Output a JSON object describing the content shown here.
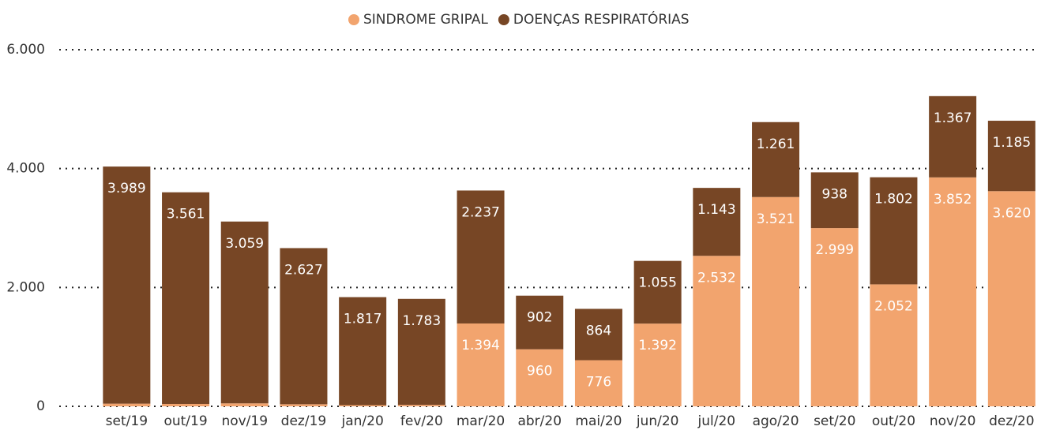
{
  "chart_data": {
    "type": "stacked-bar",
    "categories": [
      "set/19",
      "out/19",
      "nov/19",
      "dez/19",
      "jan/20",
      "fev/20",
      "mar/20",
      "abr/20",
      "mai/20",
      "jun/20",
      "jul/20",
      "ago/20",
      "set/20",
      "out/20",
      "nov/20",
      "dez/20"
    ],
    "series": [
      {
        "name": "SINDROME GRIPAL",
        "color": "#f2a46e",
        "values": [
          45,
          40,
          50,
          35,
          20,
          25,
          1394,
          960,
          776,
          1392,
          2532,
          3521,
          2999,
          2052,
          3852,
          3620
        ],
        "value_labels": [
          null,
          null,
          null,
          null,
          null,
          null,
          "1.394",
          "960",
          "776",
          "1.392",
          "2.532",
          "3.521",
          "2.999",
          "2.052",
          "3.852",
          "3.620"
        ]
      },
      {
        "name": "DOENÇAS RESPIRATÓRIAS",
        "color": "#774625",
        "values": [
          3989,
          3561,
          3059,
          2627,
          1817,
          1783,
          2237,
          902,
          864,
          1055,
          1143,
          1261,
          938,
          1802,
          1367,
          1185
        ],
        "value_labels": [
          "3.989",
          "3.561",
          "3.059",
          "2.627",
          "1.817",
          "1.783",
          "2.237",
          "902",
          "864",
          "1.055",
          "1.143",
          "1.261",
          "938",
          "1.802",
          "1.367",
          "1.185"
        ]
      }
    ],
    "ylim": [
      0,
      6000
    ],
    "yticks": [
      0,
      {
        "value": 2000,
        "label": "2.000"
      },
      {
        "value": 4000,
        "label": "4.000"
      },
      {
        "value": 6000,
        "label": "6.000"
      }
    ],
    "grid": true,
    "legend": "top"
  }
}
